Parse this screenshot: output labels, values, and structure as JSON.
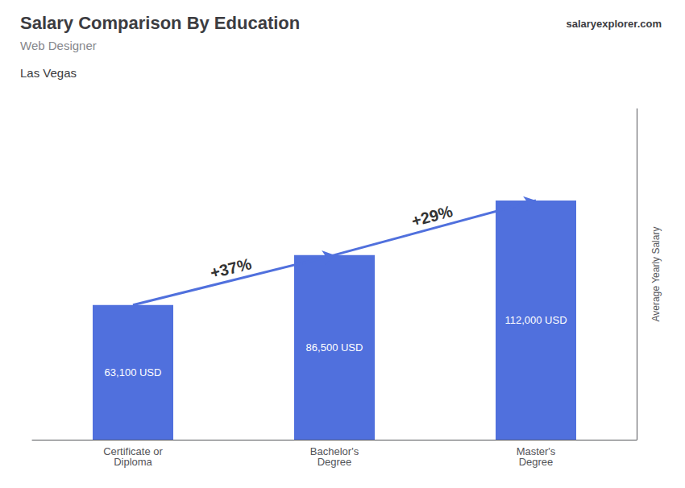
{
  "chart_data": {
    "type": "bar",
    "title": "Salary Comparison By Education",
    "subtitle": "Web Designer",
    "annotations": [
      "Las Vegas",
      "salaryexplorer.com"
    ],
    "categories": [
      "Certificate or\nDiploma",
      "Bachelor's\nDegree",
      "Master's\nDegree"
    ],
    "values": [
      63100,
      86500,
      112000
    ],
    "value_labels": [
      "63,100 USD",
      "86,500 USD",
      "112,000 USD"
    ],
    "data_labels": true,
    "arrows": [
      {
        "from": 0,
        "to": 1,
        "label": "+37%"
      },
      {
        "from": 1,
        "to": 2,
        "label": "+29%"
      }
    ],
    "ylabel": "Average Yearly Salary",
    "ylim": [
      0,
      155000
    ],
    "tick_labels": "x",
    "grid": false
  }
}
